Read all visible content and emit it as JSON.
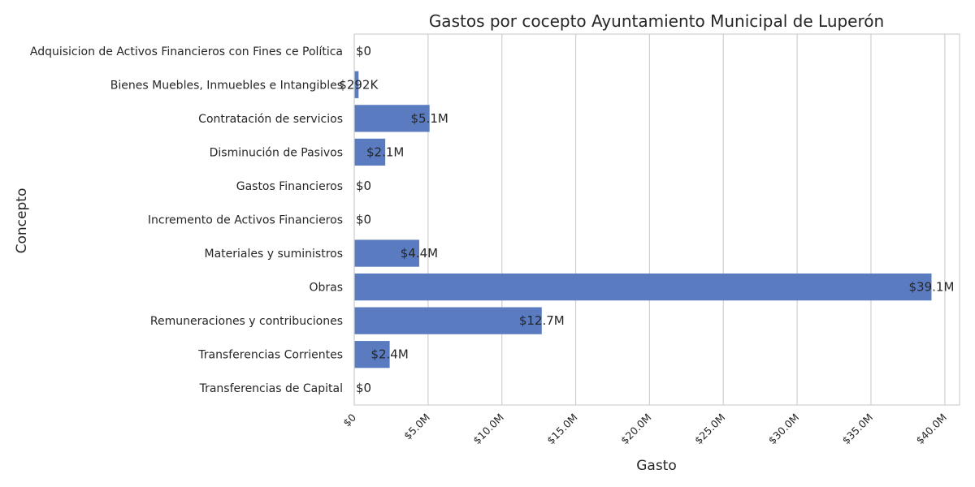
{
  "chart_data": {
    "type": "bar",
    "orientation": "horizontal",
    "title": "Gastos por cocepto Ayuntamiento Municipal de Luperón",
    "xlabel": "Gasto",
    "ylabel": "Concepto",
    "xlim": [
      0,
      41000000
    ],
    "grid": true,
    "bar_color": "#5a7bbf",
    "categories": [
      "Adquisicion de Activos Financieros con Fines ce Política",
      "Bienes Muebles, Inmuebles e Intangibles",
      "Contratación de servicios",
      "Disminución de Pasivos",
      "Gastos Financieros",
      "Incremento de Activos Financieros",
      "Materiales y suministros",
      "Obras",
      "Remuneraciones y contribuciones",
      "Transferencias Corrientes",
      "Transferencias de Capital"
    ],
    "values": [
      0,
      292000,
      5100000,
      2100000,
      0,
      0,
      4400000,
      39100000,
      12700000,
      2400000,
      0
    ],
    "value_labels": [
      "$0",
      "$292K",
      "$5.1M",
      "$2.1M",
      "$0",
      "$0",
      "$4.4M",
      "$39.1M",
      "$12.7M",
      "$2.4M",
      "$0"
    ],
    "x_ticks": [
      0,
      5000000,
      10000000,
      15000000,
      20000000,
      25000000,
      30000000,
      35000000,
      40000000
    ],
    "x_tick_labels": [
      "$0",
      "$5.0M",
      "$10.0M",
      "$15.0M",
      "$20.0M",
      "$25.0M",
      "$30.0M",
      "$35.0M",
      "$40.0M"
    ]
  }
}
